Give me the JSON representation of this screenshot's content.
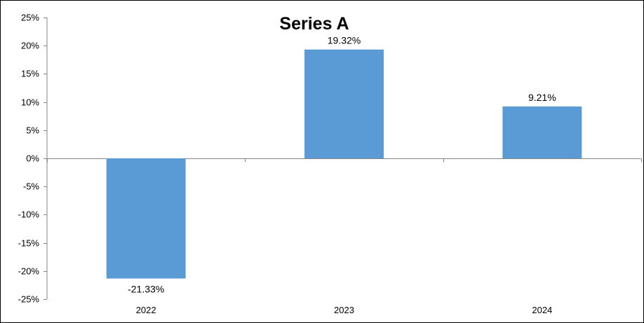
{
  "chart_data": {
    "type": "bar",
    "title": "Series A",
    "categories": [
      "2022",
      "2023",
      "2024"
    ],
    "series": [
      {
        "values": [
          -21.33,
          19.32,
          9.21
        ],
        "color": "#5b9bd5"
      }
    ],
    "data_labels": [
      "-21.33%",
      "19.32%",
      "9.21%"
    ],
    "ylim": [
      -25,
      25
    ],
    "y_ticks": [
      25,
      20,
      15,
      10,
      5,
      0,
      -5,
      -10,
      -15,
      -20,
      -25
    ],
    "y_tick_labels": [
      "25%",
      "20%",
      "15%",
      "10%",
      "5%",
      "0%",
      "-5%",
      "-10%",
      "-15%",
      "-20%",
      "-25%"
    ],
    "xlabel": "",
    "ylabel": "",
    "grid": false,
    "legend": "none",
    "axis_color": "#868686"
  }
}
